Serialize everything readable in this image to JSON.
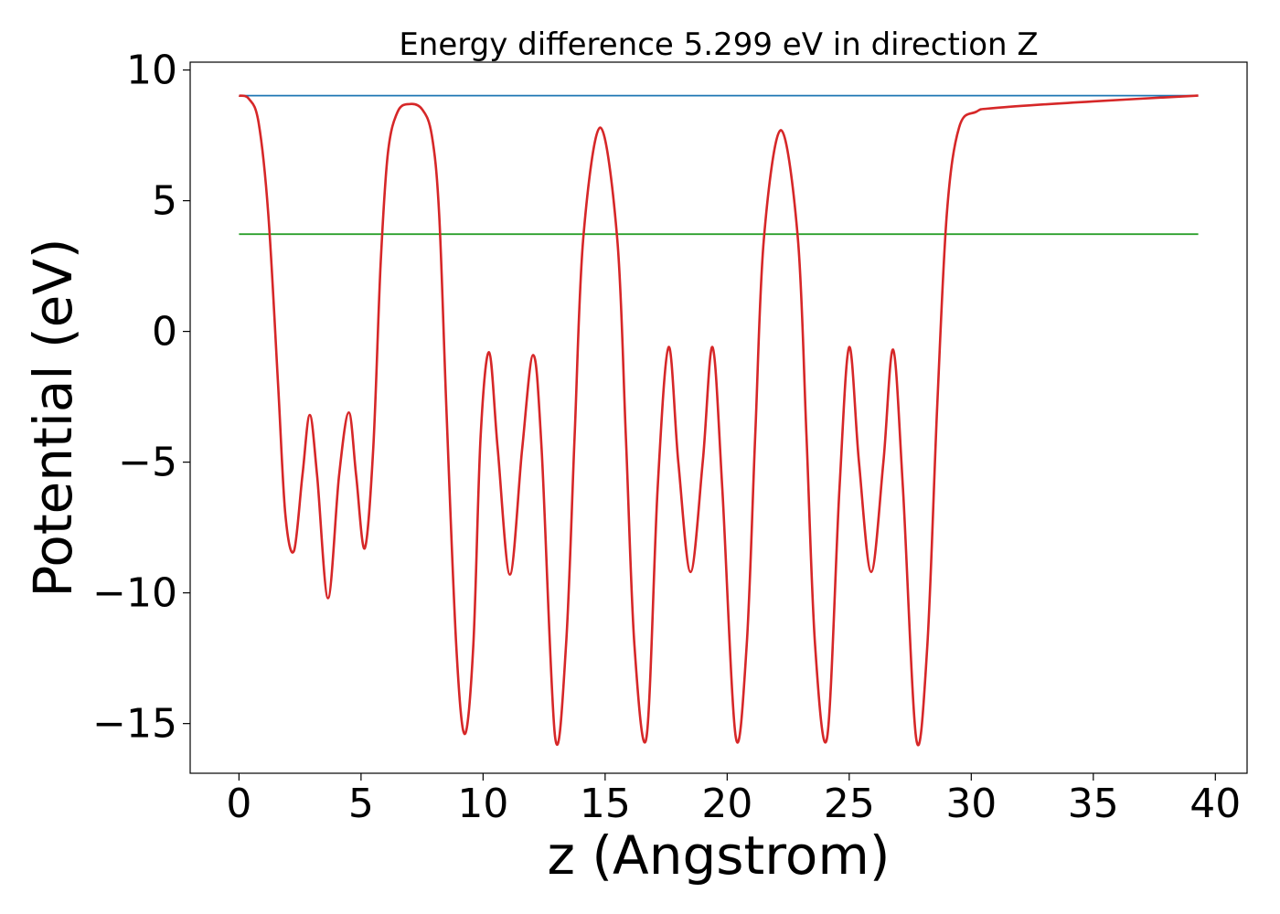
{
  "chart_data": {
    "type": "line",
    "title": "Energy difference 5.299 eV in direction Z",
    "xlabel": "z (Angstrom)",
    "ylabel": "Potential (eV)",
    "xlim": [
      -2,
      41.3
    ],
    "ylim": [
      -16.9,
      10.3
    ],
    "x_ticks": [
      0,
      5,
      10,
      15,
      20,
      25,
      30,
      35,
      40
    ],
    "y_ticks": [
      10,
      5,
      0,
      -5,
      -10,
      -15
    ],
    "x_tick_labels": [
      "0",
      "5",
      "10",
      "15",
      "20",
      "25",
      "30",
      "35",
      "40"
    ],
    "y_tick_labels": [
      "10",
      "5",
      "0",
      "−5",
      "−10",
      "−15"
    ],
    "grid": false,
    "series": [
      {
        "color": "#1f77b4",
        "x": [
          0,
          39.3
        ],
        "y": [
          9.02,
          9.02
        ]
      },
      {
        "color": "#2ca02c",
        "x": [
          0,
          39.3
        ],
        "y": [
          3.72,
          3.72
        ]
      },
      {
        "color": "#d62728",
        "x": [
          0,
          0.4,
          0.8,
          1.2,
          1.6,
          1.9,
          2.25,
          2.6,
          2.9,
          3.2,
          3.65,
          4.1,
          4.5,
          4.8,
          5.15,
          5.5,
          5.8,
          6.1,
          6.5,
          7.0,
          7.5,
          7.9,
          8.2,
          8.5,
          8.9,
          9.25,
          9.6,
          9.9,
          10.25,
          10.6,
          11.1,
          11.6,
          12.05,
          12.4,
          12.95,
          13.4,
          13.75,
          14.1,
          14.8,
          15.5,
          15.85,
          16.2,
          16.7,
          17.15,
          17.6,
          18.0,
          18.5,
          19.0,
          19.4,
          19.8,
          20.35,
          20.8,
          21.15,
          21.5,
          22.2,
          22.9,
          23.25,
          23.6,
          24.1,
          24.6,
          25.0,
          25.4,
          25.9,
          26.4,
          26.8,
          27.2,
          27.75,
          28.2,
          28.6,
          29.0,
          29.5,
          30.2,
          31.0,
          35.0,
          39.3
        ],
        "y": [
          9.02,
          8.9,
          8.0,
          4.5,
          -2.0,
          -7.0,
          -8.4,
          -5.5,
          -3.2,
          -5.5,
          -10.2,
          -5.5,
          -3.1,
          -5.5,
          -8.3,
          -4.5,
          2.5,
          6.8,
          8.4,
          8.7,
          8.5,
          7.5,
          4.5,
          -3.0,
          -12.0,
          -15.4,
          -12.0,
          -4.0,
          -0.8,
          -4.5,
          -9.3,
          -4.5,
          -0.9,
          -4.5,
          -15.5,
          -12.0,
          -4.0,
          3.5,
          7.8,
          3.5,
          -4.0,
          -12.0,
          -15.5,
          -6.0,
          -0.6,
          -5.0,
          -9.2,
          -5.0,
          -0.6,
          -6.0,
          -15.5,
          -12.0,
          -4.0,
          3.5,
          7.7,
          3.5,
          -4.0,
          -12.0,
          -15.5,
          -6.0,
          -0.6,
          -5.0,
          -9.2,
          -5.0,
          -0.7,
          -6.0,
          -15.6,
          -12.0,
          -3.0,
          4.5,
          7.8,
          8.4,
          8.55,
          8.8,
          9.02
        ]
      }
    ]
  }
}
